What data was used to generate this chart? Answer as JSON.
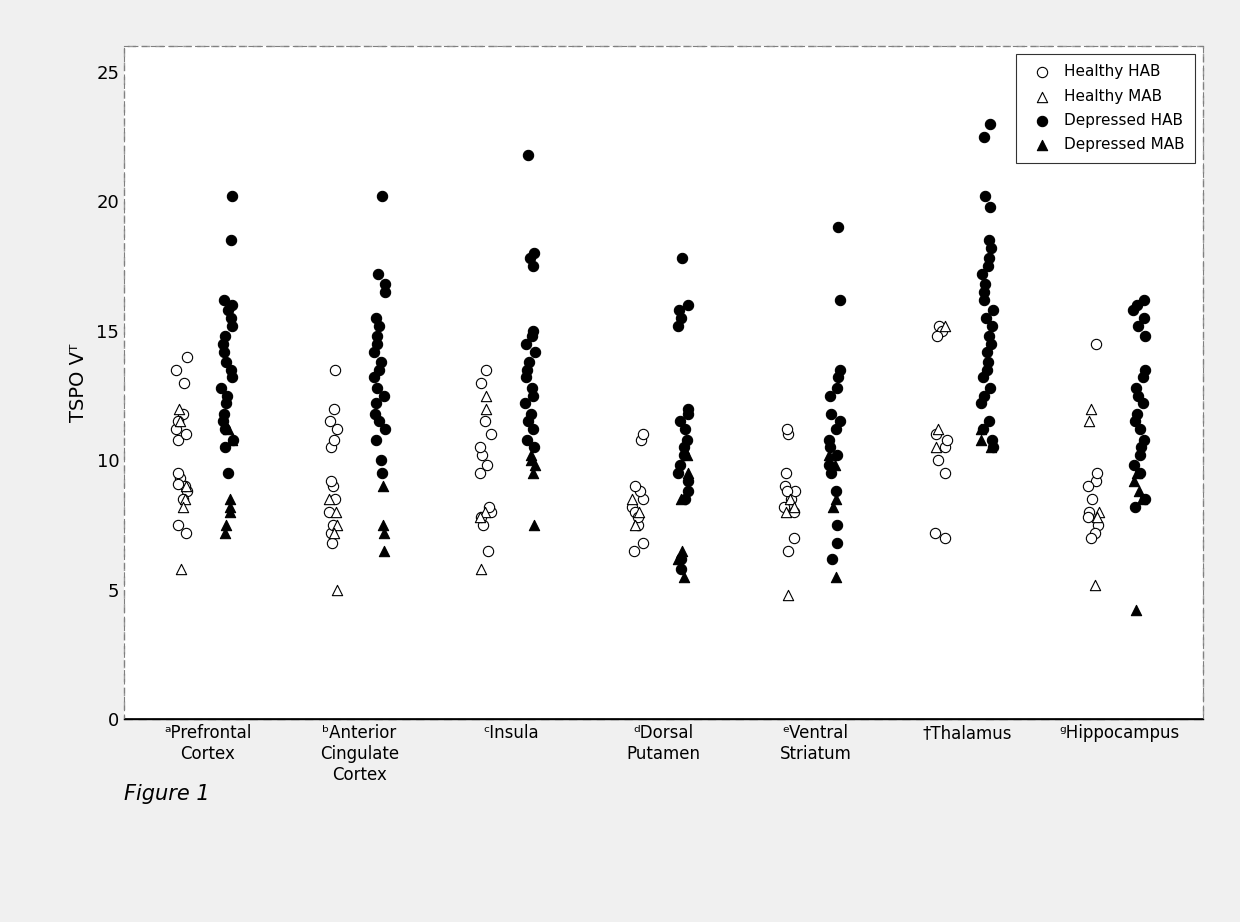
{
  "categories": [
    "ᵃPrefrontal\nCortex",
    "ᵇAnterior\nCingulate\nCortex",
    "ᶜInsula",
    "ᵈDorsal\nPutamen",
    "ᵉVentral\nStriatum",
    "†Thalamus",
    "ᵍHippocampus"
  ],
  "ylabel": "TSPO Vᵀ",
  "figure_label": "Figure 1",
  "ylim": [
    0,
    26
  ],
  "yticks": [
    0,
    5,
    10,
    15,
    20,
    25
  ],
  "background_color": "#f0f0f0",
  "plot_bg": "#ffffff",
  "healthy_HAB": {
    "label": "Healthy HAB",
    "data": [
      [
        9.3,
        8.8,
        9.0,
        8.5,
        9.5,
        10.8,
        11.2,
        11.0,
        11.8,
        13.0,
        13.5,
        14.0,
        7.2,
        7.5,
        9.1,
        11.5
      ],
      [
        10.5,
        10.8,
        9.0,
        9.2,
        8.5,
        8.0,
        7.2,
        6.8,
        7.5,
        11.2,
        11.5,
        12.0,
        13.5
      ],
      [
        9.5,
        9.8,
        10.2,
        10.5,
        11.0,
        8.0,
        8.2,
        7.5,
        7.8,
        6.5,
        11.5,
        13.0,
        13.5
      ],
      [
        8.2,
        8.5,
        8.0,
        8.8,
        9.0,
        7.5,
        7.8,
        6.5,
        6.8,
        10.8,
        11.0
      ],
      [
        8.0,
        8.5,
        8.8,
        9.0,
        9.5,
        8.2,
        8.8,
        11.0,
        11.2,
        7.0,
        6.5
      ],
      [
        15.2,
        15.0,
        14.8,
        10.5,
        11.0,
        10.8,
        9.5,
        10.0,
        7.2,
        7.0
      ],
      [
        14.5,
        9.2,
        9.5,
        9.0,
        8.5,
        8.0,
        7.5,
        7.2,
        7.0,
        7.8
      ]
    ]
  },
  "healthy_MAB": {
    "label": "Healthy MAB",
    "data": [
      [
        12.0,
        11.5,
        8.5,
        8.2,
        9.0,
        5.8
      ],
      [
        8.5,
        8.0,
        7.5,
        7.2,
        5.0
      ],
      [
        12.5,
        12.0,
        8.0,
        7.8,
        5.8
      ],
      [
        8.5,
        8.0,
        7.5
      ],
      [
        8.5,
        8.2,
        8.0,
        4.8
      ],
      [
        15.2,
        11.2,
        10.5
      ],
      [
        12.0,
        11.5,
        8.0,
        7.8,
        5.2
      ]
    ]
  },
  "depressed_HAB": {
    "label": "Depressed HAB",
    "data": [
      [
        20.2,
        18.5,
        16.2,
        16.0,
        15.8,
        15.5,
        15.2,
        14.8,
        14.5,
        14.2,
        13.8,
        13.5,
        13.2,
        12.8,
        12.5,
        12.2,
        11.8,
        11.5,
        11.2,
        10.8,
        10.5,
        9.5
      ],
      [
        20.2,
        17.2,
        16.8,
        16.5,
        15.5,
        15.2,
        14.8,
        14.5,
        14.2,
        13.8,
        13.5,
        13.2,
        12.8,
        12.5,
        12.2,
        11.8,
        11.5,
        11.2,
        10.8,
        10.0,
        9.5
      ],
      [
        21.8,
        18.0,
        17.8,
        17.5,
        15.0,
        14.8,
        14.5,
        14.2,
        13.8,
        13.5,
        13.2,
        12.8,
        12.5,
        12.2,
        11.8,
        11.5,
        11.2,
        10.8,
        10.5
      ],
      [
        17.8,
        16.0,
        15.8,
        15.5,
        15.2,
        12.0,
        11.8,
        11.5,
        11.2,
        10.8,
        10.5,
        10.2,
        9.8,
        9.5,
        9.2,
        8.8,
        8.5,
        6.2,
        5.8
      ],
      [
        19.0,
        16.2,
        13.5,
        13.2,
        12.8,
        12.5,
        11.8,
        11.5,
        11.2,
        10.8,
        10.5,
        10.2,
        9.8,
        9.5,
        8.8,
        7.5,
        6.8,
        6.2
      ],
      [
        23.0,
        22.5,
        20.2,
        19.8,
        18.5,
        18.2,
        17.8,
        17.5,
        17.2,
        16.8,
        16.5,
        16.2,
        15.8,
        15.5,
        15.2,
        14.8,
        14.5,
        14.2,
        13.8,
        13.5,
        13.2,
        12.8,
        12.5,
        12.2,
        11.5,
        11.2,
        10.8,
        10.5
      ],
      [
        16.2,
        16.0,
        15.8,
        15.5,
        15.2,
        14.8,
        13.5,
        13.2,
        12.8,
        12.5,
        12.2,
        11.8,
        11.5,
        11.2,
        10.8,
        10.5,
        10.2,
        9.8,
        9.5,
        8.5,
        8.2
      ]
    ]
  },
  "depressed_MAB": {
    "label": "Depressed MAB",
    "data": [
      [
        11.2,
        10.8,
        8.5,
        8.2,
        8.0,
        7.5,
        7.2
      ],
      [
        9.0,
        7.5,
        7.2,
        6.5
      ],
      [
        10.2,
        10.0,
        9.8,
        9.5,
        7.5
      ],
      [
        10.2,
        9.5,
        8.5,
        6.5,
        6.2,
        5.5
      ],
      [
        10.2,
        9.8,
        8.5,
        8.2,
        5.5
      ],
      [
        11.2,
        10.8,
        10.5
      ],
      [
        9.5,
        9.2,
        8.8,
        8.5,
        4.2
      ]
    ]
  },
  "jitter_seed": 42,
  "marker_size": 55,
  "linewidths": 0.8
}
